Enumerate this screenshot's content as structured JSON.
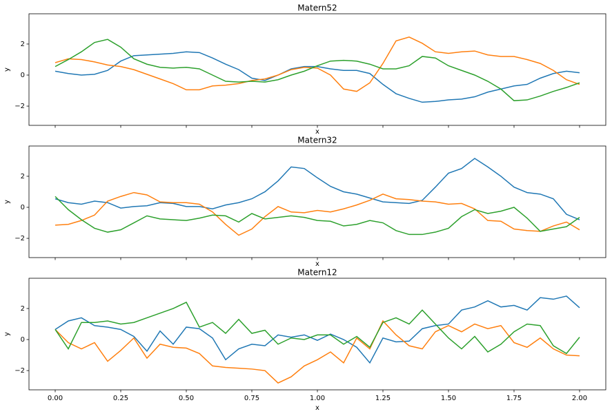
{
  "chart_data": [
    {
      "type": "line",
      "title": "Matern52",
      "xlabel": "x",
      "ylabel": "y",
      "x": [
        0,
        0.05,
        0.1,
        0.15,
        0.2,
        0.25,
        0.3,
        0.35,
        0.4,
        0.45,
        0.5,
        0.55,
        0.6,
        0.65,
        0.7,
        0.75,
        0.8,
        0.85,
        0.9,
        0.95,
        1.0,
        1.05,
        1.1,
        1.15,
        1.2,
        1.25,
        1.3,
        1.35,
        1.4,
        1.45,
        1.5,
        1.55,
        1.6,
        1.65,
        1.7,
        1.75,
        1.8,
        1.85,
        1.9,
        1.95,
        2.0
      ],
      "xlim": [
        -0.1,
        2.1
      ],
      "ylim": [
        -3.24,
        3.95
      ],
      "xticks": [
        0,
        0.25,
        0.5,
        0.75,
        1,
        1.25,
        1.5,
        1.75,
        2
      ],
      "yticks": [
        {
          "value": -2,
          "label": "−2"
        },
        0,
        2
      ],
      "series": [
        {
          "color": "#1f77b4",
          "values": [
            0.25,
            0.1,
            0.0,
            0.05,
            0.3,
            0.9,
            1.25,
            1.3,
            1.35,
            1.4,
            1.5,
            1.45,
            1.1,
            0.7,
            0.35,
            -0.2,
            -0.35,
            0.0,
            0.4,
            0.55,
            0.55,
            0.4,
            0.3,
            0.3,
            0.1,
            -0.6,
            -1.2,
            -1.5,
            -1.75,
            -1.7,
            -1.6,
            -1.55,
            -1.4,
            -1.1,
            -0.9,
            -0.7,
            -0.6,
            -0.2,
            0.1,
            0.25,
            0.15
          ]
        },
        {
          "color": "#ff7f0e",
          "values": [
            0.8,
            1.05,
            1.0,
            0.85,
            0.65,
            0.55,
            0.35,
            0.05,
            -0.25,
            -0.55,
            -0.95,
            -0.95,
            -0.7,
            -0.65,
            -0.55,
            -0.35,
            -0.25,
            0.0,
            0.35,
            0.5,
            0.45,
            0.0,
            -0.9,
            -1.05,
            -0.5,
            0.75,
            2.2,
            2.45,
            2.05,
            1.5,
            1.4,
            1.5,
            1.55,
            1.3,
            1.2,
            1.2,
            1.0,
            0.75,
            0.3,
            -0.3,
            -0.6
          ]
        },
        {
          "color": "#2ca02c",
          "values": [
            0.55,
            1.0,
            1.5,
            2.1,
            2.3,
            1.8,
            1.05,
            0.7,
            0.5,
            0.45,
            0.5,
            0.4,
            0.0,
            -0.4,
            -0.45,
            -0.4,
            -0.45,
            -0.3,
            0.0,
            0.25,
            0.6,
            0.9,
            0.95,
            0.9,
            0.7,
            0.4,
            0.4,
            0.6,
            1.2,
            1.1,
            0.6,
            0.3,
            0.0,
            -0.4,
            -0.9,
            -1.65,
            -1.6,
            -1.35,
            -1.05,
            -0.8,
            -0.5
          ]
        }
      ]
    },
    {
      "type": "line",
      "title": "Matern32",
      "xlabel": "x",
      "ylabel": "y",
      "x": [
        0,
        0.05,
        0.1,
        0.15,
        0.2,
        0.25,
        0.3,
        0.35,
        0.4,
        0.45,
        0.5,
        0.55,
        0.6,
        0.65,
        0.7,
        0.75,
        0.8,
        0.85,
        0.9,
        0.95,
        1.0,
        1.05,
        1.1,
        1.15,
        1.2,
        1.25,
        1.3,
        1.35,
        1.4,
        1.45,
        1.5,
        1.55,
        1.6,
        1.65,
        1.7,
        1.75,
        1.8,
        1.85,
        1.9,
        1.95,
        2.0
      ],
      "xlim": [
        -0.1,
        2.1
      ],
      "ylim": [
        -3.24,
        3.95
      ],
      "xticks": [
        0,
        0.25,
        0.5,
        0.75,
        1,
        1.25,
        1.5,
        1.75,
        2
      ],
      "yticks": [
        {
          "value": -2,
          "label": "−2"
        },
        0,
        2
      ],
      "series": [
        {
          "color": "#1f77b4",
          "values": [
            0.55,
            0.3,
            0.2,
            0.4,
            0.3,
            -0.05,
            0.05,
            0.1,
            0.3,
            0.25,
            0.05,
            0.05,
            -0.1,
            0.15,
            0.3,
            0.55,
            1.0,
            1.7,
            2.6,
            2.5,
            1.9,
            1.35,
            1.0,
            0.85,
            0.6,
            0.35,
            0.3,
            0.25,
            0.45,
            1.3,
            2.2,
            2.5,
            3.15,
            2.6,
            2.0,
            1.3,
            0.95,
            0.85,
            0.55,
            -0.45,
            -0.8
          ]
        },
        {
          "color": "#ff7f0e",
          "values": [
            -1.15,
            -1.1,
            -0.85,
            -0.5,
            0.4,
            0.7,
            0.95,
            0.8,
            0.35,
            0.3,
            0.3,
            0.2,
            -0.3,
            -1.1,
            -1.8,
            -1.4,
            -0.6,
            0.05,
            -0.3,
            -0.35,
            -0.2,
            -0.3,
            -0.1,
            0.15,
            0.45,
            0.85,
            0.55,
            0.5,
            0.4,
            0.35,
            0.2,
            0.25,
            -0.1,
            -0.85,
            -0.9,
            -1.4,
            -1.5,
            -1.55,
            -1.2,
            -0.95,
            -1.45
          ]
        },
        {
          "color": "#2ca02c",
          "values": [
            0.7,
            -0.15,
            -0.8,
            -1.35,
            -1.6,
            -1.45,
            -1.0,
            -0.55,
            -0.75,
            -0.8,
            -0.85,
            -0.7,
            -0.5,
            -0.55,
            -0.95,
            -0.4,
            -0.75,
            -0.65,
            -0.55,
            -0.65,
            -0.85,
            -0.9,
            -1.2,
            -1.1,
            -0.85,
            -1.0,
            -1.5,
            -1.75,
            -1.75,
            -1.6,
            -1.35,
            -0.6,
            -0.15,
            -0.4,
            -0.25,
            0.0,
            -0.7,
            -1.55,
            -1.4,
            -1.25,
            -0.65
          ]
        }
      ]
    },
    {
      "type": "line",
      "title": "Matern12",
      "xlabel": "x",
      "ylabel": "y",
      "x": [
        0,
        0.05,
        0.1,
        0.15,
        0.2,
        0.25,
        0.3,
        0.35,
        0.4,
        0.45,
        0.5,
        0.55,
        0.6,
        0.65,
        0.7,
        0.75,
        0.8,
        0.85,
        0.9,
        0.95,
        1.0,
        1.05,
        1.1,
        1.15,
        1.2,
        1.25,
        1.3,
        1.35,
        1.4,
        1.45,
        1.5,
        1.55,
        1.6,
        1.65,
        1.7,
        1.75,
        1.8,
        1.85,
        1.9,
        1.95,
        2.0
      ],
      "xlim": [
        -0.1,
        2.1
      ],
      "ylim": [
        -3.24,
        3.95
      ],
      "xticks": [
        {
          "value": 0,
          "label": "0.00"
        },
        {
          "value": 0.25,
          "label": "0.25"
        },
        {
          "value": 0.5,
          "label": "0.50"
        },
        {
          "value": 0.75,
          "label": "0.75"
        },
        {
          "value": 1,
          "label": "1.00"
        },
        {
          "value": 1.25,
          "label": "1.25"
        },
        {
          "value": 1.5,
          "label": "1.50"
        },
        {
          "value": 1.75,
          "label": "1.75"
        },
        {
          "value": 2,
          "label": "2.00"
        }
      ],
      "yticks": [
        {
          "value": -2,
          "label": "−2"
        },
        0,
        2
      ],
      "series": [
        {
          "color": "#1f77b4",
          "values": [
            0.65,
            1.2,
            1.4,
            0.9,
            0.8,
            0.65,
            0.2,
            -0.75,
            0.55,
            -0.3,
            0.8,
            0.7,
            0.1,
            -1.3,
            -0.6,
            -0.3,
            -0.4,
            0.3,
            0.15,
            0.3,
            -0.05,
            0.35,
            0.0,
            -0.5,
            -1.5,
            0.1,
            -0.15,
            -0.1,
            0.7,
            0.9,
            1.0,
            1.9,
            2.1,
            2.5,
            2.1,
            2.2,
            1.9,
            2.7,
            2.6,
            2.8,
            2.05
          ]
        },
        {
          "color": "#ff7f0e",
          "values": [
            0.65,
            -0.2,
            -0.6,
            -0.2,
            -1.4,
            -0.7,
            0.1,
            -1.2,
            -0.3,
            -0.5,
            -0.55,
            -0.9,
            -1.7,
            -1.8,
            -1.85,
            -1.9,
            -2.0,
            -2.8,
            -2.4,
            -1.7,
            -1.3,
            -0.8,
            -1.5,
            0.1,
            -0.6,
            1.2,
            0.3,
            -0.4,
            -0.6,
            0.5,
            0.9,
            0.5,
            1.0,
            0.7,
            0.9,
            -0.2,
            -0.5,
            0.1,
            -0.6,
            -1.0,
            -1.05
          ]
        },
        {
          "color": "#2ca02c",
          "values": [
            0.65,
            -0.6,
            1.1,
            1.1,
            1.2,
            1.0,
            1.1,
            1.4,
            1.7,
            2.0,
            2.4,
            0.8,
            1.1,
            0.4,
            1.3,
            0.4,
            0.6,
            -0.3,
            0.1,
            0.0,
            0.3,
            0.3,
            -0.3,
            0.2,
            -0.5,
            1.1,
            1.4,
            1.0,
            1.9,
            1.0,
            0.1,
            -0.6,
            0.2,
            -0.8,
            -0.3,
            0.5,
            1.0,
            0.9,
            -0.4,
            -0.9,
            0.15
          ]
        }
      ]
    }
  ]
}
